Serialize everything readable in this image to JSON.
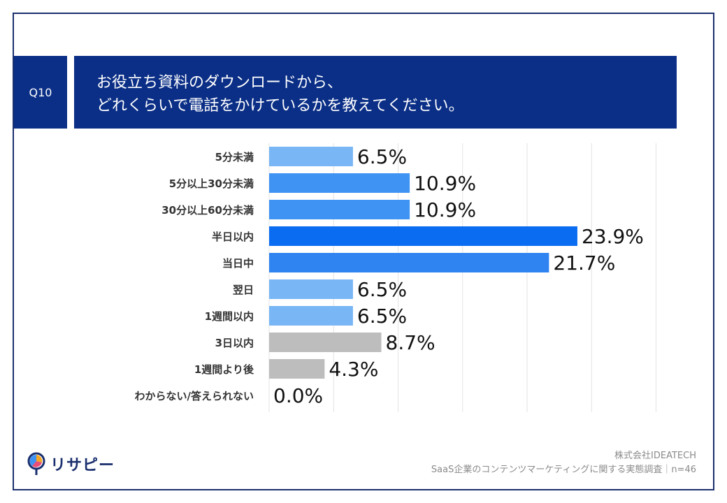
{
  "question": {
    "number": "Q10",
    "line1": "お役立ち資料のダウンロードから、",
    "line2": "どれくらいで電話をかけているかを教えてください。"
  },
  "chart_data": {
    "type": "bar",
    "orientation": "horizontal",
    "categories": [
      "5分未満",
      "5分以上30分未満",
      "30分以上60分未満",
      "半日以内",
      "当日中",
      "翌日",
      "1週間以内",
      "3日以内",
      "1週間より後",
      "わからない/答えられない"
    ],
    "values": [
      6.5,
      10.9,
      10.9,
      23.9,
      21.7,
      6.5,
      6.5,
      8.7,
      4.3,
      0.0
    ],
    "value_labels": [
      "6.5%",
      "10.9%",
      "10.9%",
      "23.9%",
      "21.7%",
      "6.5%",
      "6.5%",
      "8.7%",
      "4.3%",
      "0.0%"
    ],
    "colors": [
      "#78b6f6",
      "#3f93f2",
      "#3f93f2",
      "#0a6cf0",
      "#2f84f1",
      "#78b6f6",
      "#78b6f6",
      "#bdbdbd",
      "#bdbdbd",
      "#bdbdbd"
    ],
    "xlim": [
      0,
      30
    ],
    "grid": true
  },
  "source": {
    "company": "株式会社IDEATECH",
    "survey": "SaaS企業のコンテンツマーケティングに関する実態調査｜n=46"
  },
  "logo": {
    "text": "リサピー"
  }
}
